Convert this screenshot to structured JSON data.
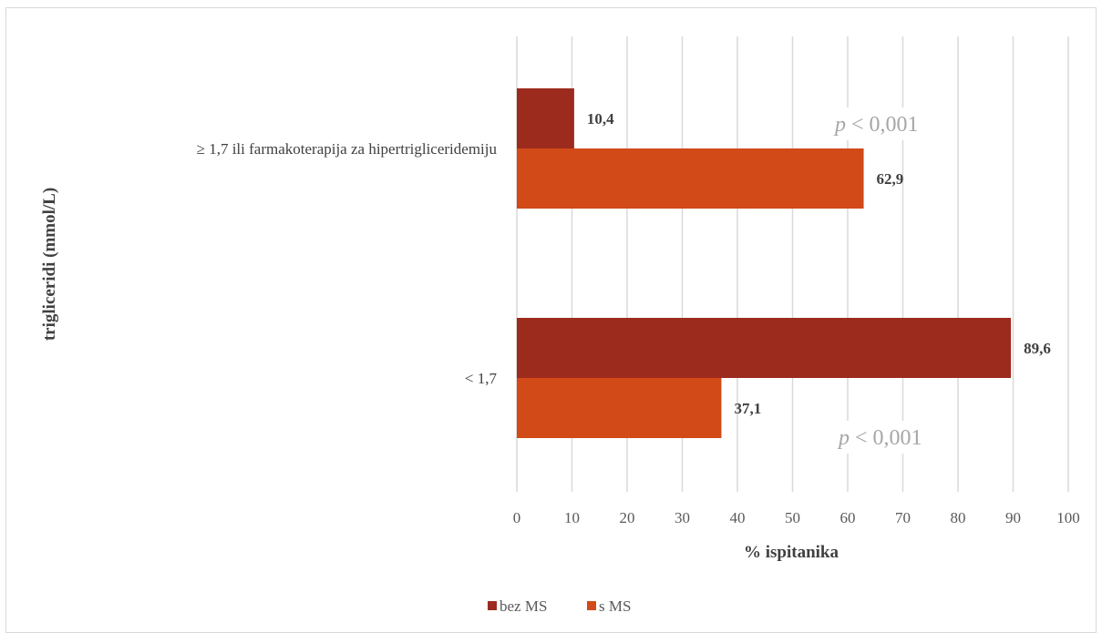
{
  "chart_data": {
    "type": "bar",
    "orientation": "horizontal",
    "categories": [
      "≥ 1,7 ili  farmakoterapija  za hipertrigliceridemiju",
      "< 1,7"
    ],
    "series": [
      {
        "name": "bez MS",
        "values": [
          10.4,
          89.6
        ],
        "labels": [
          "10,4",
          "89,6"
        ],
        "color": "#9c2b1e"
      },
      {
        "name": "s MS",
        "values": [
          62.9,
          37.1
        ],
        "labels": [
          "62,9",
          "37,1"
        ],
        "color": "#d14a18"
      }
    ],
    "xlabel": "% ispitanika",
    "ylabel": "trigliceridi  (mmol/L)",
    "xlim": [
      0,
      100
    ],
    "xticks": [
      0,
      10,
      20,
      30,
      40,
      50,
      60,
      70,
      80,
      90,
      100
    ],
    "grid": "vertical",
    "legend_position": "bottom",
    "annotations": [
      {
        "p": "p",
        "rest": " < 0,001"
      },
      {
        "p": "p",
        "rest": " < 0,001"
      }
    ]
  }
}
